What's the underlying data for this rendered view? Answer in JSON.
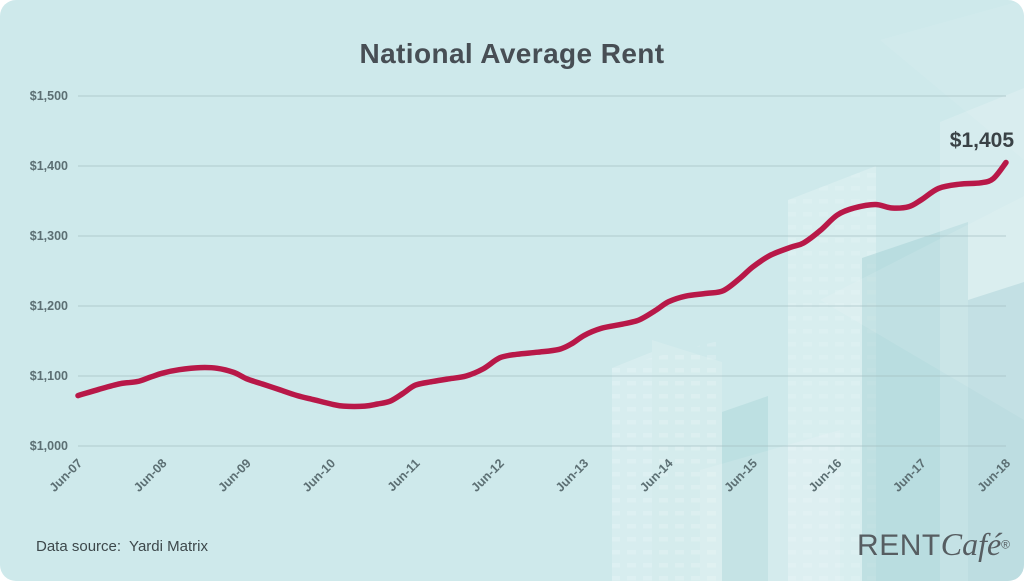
{
  "chart_data": {
    "type": "line",
    "title": "National Average Rent",
    "xlabel": "",
    "ylabel": "",
    "ylim": [
      1000,
      1500
    ],
    "grid": true,
    "legend": "none",
    "end_label": "$1,405",
    "yticks": [
      {
        "value": 1000,
        "label": "$1,000"
      },
      {
        "value": 1100,
        "label": "$1,100"
      },
      {
        "value": 1200,
        "label": "$1,200"
      },
      {
        "value": 1300,
        "label": "$1,300"
      },
      {
        "value": 1400,
        "label": "$1,400"
      },
      {
        "value": 1500,
        "label": "$1,500"
      }
    ],
    "xticks": [
      {
        "t": 0,
        "label": "Jun-07"
      },
      {
        "t": 1,
        "label": "Jun-08"
      },
      {
        "t": 2,
        "label": "Jun-09"
      },
      {
        "t": 3,
        "label": "Jun-10"
      },
      {
        "t": 4,
        "label": "Jun-11"
      },
      {
        "t": 5,
        "label": "Jun-12"
      },
      {
        "t": 6,
        "label": "Jun-13"
      },
      {
        "t": 7,
        "label": "Jun-14"
      },
      {
        "t": 8,
        "label": "Jun-15"
      },
      {
        "t": 9,
        "label": "Jun-16"
      },
      {
        "t": 10,
        "label": "Jun-17"
      },
      {
        "t": 11,
        "label": "Jun-18"
      }
    ],
    "series": [
      {
        "color": "#b81848",
        "points": [
          [
            0,
            1072
          ],
          [
            0.25,
            1081
          ],
          [
            0.5,
            1089
          ],
          [
            0.7,
            1092
          ],
          [
            0.85,
            1098
          ],
          [
            1,
            1104
          ],
          [
            1.2,
            1109
          ],
          [
            1.45,
            1112
          ],
          [
            1.65,
            1111
          ],
          [
            1.85,
            1105
          ],
          [
            2,
            1096
          ],
          [
            2.2,
            1088
          ],
          [
            2.4,
            1080
          ],
          [
            2.6,
            1072
          ],
          [
            2.8,
            1066
          ],
          [
            3,
            1060
          ],
          [
            3.15,
            1057
          ],
          [
            3.4,
            1057
          ],
          [
            3.55,
            1060
          ],
          [
            3.7,
            1064
          ],
          [
            3.85,
            1075
          ],
          [
            4,
            1087
          ],
          [
            4.2,
            1092
          ],
          [
            4.4,
            1096
          ],
          [
            4.6,
            1100
          ],
          [
            4.8,
            1110
          ],
          [
            5,
            1126
          ],
          [
            5.2,
            1131
          ],
          [
            5.45,
            1134
          ],
          [
            5.7,
            1138
          ],
          [
            5.85,
            1146
          ],
          [
            6,
            1158
          ],
          [
            6.2,
            1168
          ],
          [
            6.45,
            1174
          ],
          [
            6.65,
            1180
          ],
          [
            6.85,
            1194
          ],
          [
            7,
            1206
          ],
          [
            7.2,
            1214
          ],
          [
            7.45,
            1218
          ],
          [
            7.65,
            1222
          ],
          [
            7.85,
            1240
          ],
          [
            8,
            1256
          ],
          [
            8.2,
            1272
          ],
          [
            8.45,
            1284
          ],
          [
            8.6,
            1290
          ],
          [
            8.8,
            1308
          ],
          [
            9,
            1330
          ],
          [
            9.2,
            1340
          ],
          [
            9.45,
            1345
          ],
          [
            9.65,
            1340
          ],
          [
            9.85,
            1342
          ],
          [
            10,
            1352
          ],
          [
            10.2,
            1368
          ],
          [
            10.45,
            1374
          ],
          [
            10.7,
            1376
          ],
          [
            10.85,
            1382
          ],
          [
            11,
            1405
          ]
        ]
      }
    ]
  },
  "footer": {
    "source_label": "Data source:",
    "source_value": "Yardi Matrix"
  },
  "logo": {
    "rent": "RENT",
    "cafe": "Café",
    "registered": "®"
  },
  "colors": {
    "background": "#cee9eb",
    "line": "#b81848",
    "title_text": "#474e54",
    "axis_text": "#5c6f73",
    "grid": "#a0babd",
    "end_label_text": "#3a4246"
  }
}
